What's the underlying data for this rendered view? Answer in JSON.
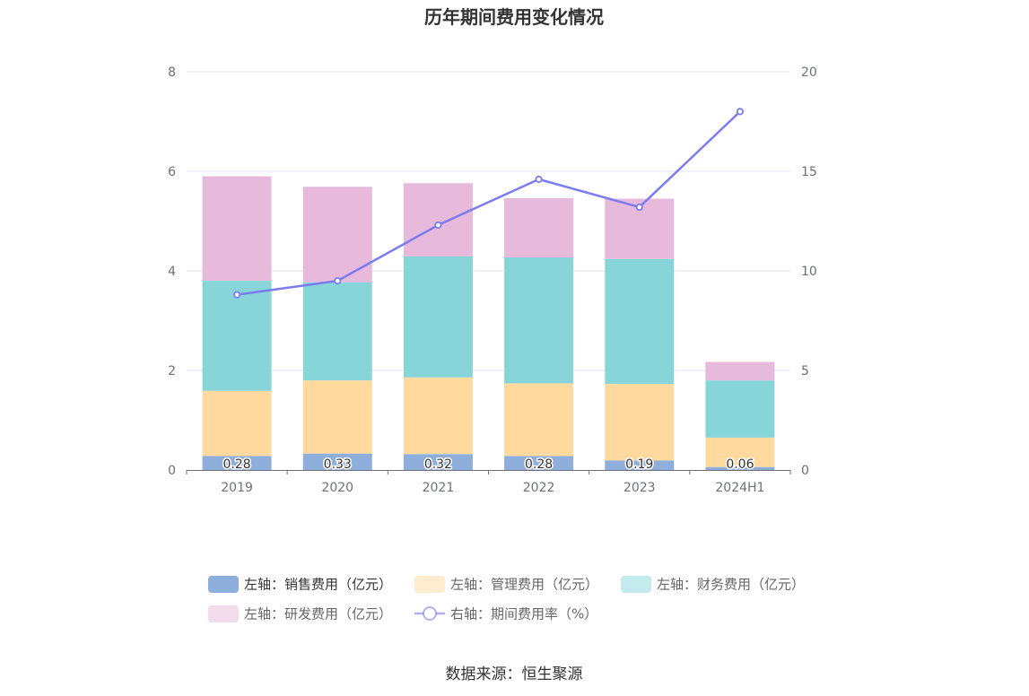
{
  "chart_data": {
    "type": "bar",
    "title": "历年期间费用变化情况",
    "categories": [
      "2019",
      "2020",
      "2021",
      "2022",
      "2023",
      "2024H1"
    ],
    "stacked": true,
    "left_axis": {
      "ylim": [
        0,
        8
      ],
      "ticks": [
        "0",
        "2",
        "4",
        "6",
        "8"
      ]
    },
    "right_axis": {
      "ylim": [
        0,
        20
      ],
      "ticks": [
        "0",
        "5",
        "10",
        "15",
        "20"
      ]
    },
    "series": [
      {
        "name": "左轴：销售费用（亿元）",
        "axis": "left",
        "type": "bar",
        "color": "#8eaedc",
        "values": [
          0.28,
          0.33,
          0.32,
          0.28,
          0.19,
          0.06
        ],
        "labels": [
          "0.28",
          "0.33",
          "0.32",
          "0.28",
          "0.19",
          "0.06"
        ]
      },
      {
        "name": "左轴：管理费用（亿元）",
        "axis": "left",
        "type": "bar",
        "color": "#ffd99e",
        "values": [
          1.31,
          1.47,
          1.54,
          1.46,
          1.54,
          0.59
        ]
      },
      {
        "name": "左轴：财务费用（亿元）",
        "axis": "left",
        "type": "bar",
        "color": "#88d5d9",
        "values": [
          2.21,
          1.97,
          2.43,
          2.53,
          2.51,
          1.15
        ]
      },
      {
        "name": "左轴：研发费用（亿元）",
        "axis": "left",
        "type": "bar",
        "color": "#e7b9da",
        "values": [
          2.1,
          1.92,
          1.47,
          1.19,
          1.21,
          0.37
        ]
      },
      {
        "name": "右轴：期间费用率（%）",
        "axis": "right",
        "type": "line",
        "color": "#7b7cf0",
        "values": [
          8.8,
          9.5,
          12.3,
          14.6,
          13.2,
          18.0
        ]
      }
    ],
    "grid": true,
    "legend_position": "bottom"
  },
  "source_text": "数据来源：恒生聚源"
}
